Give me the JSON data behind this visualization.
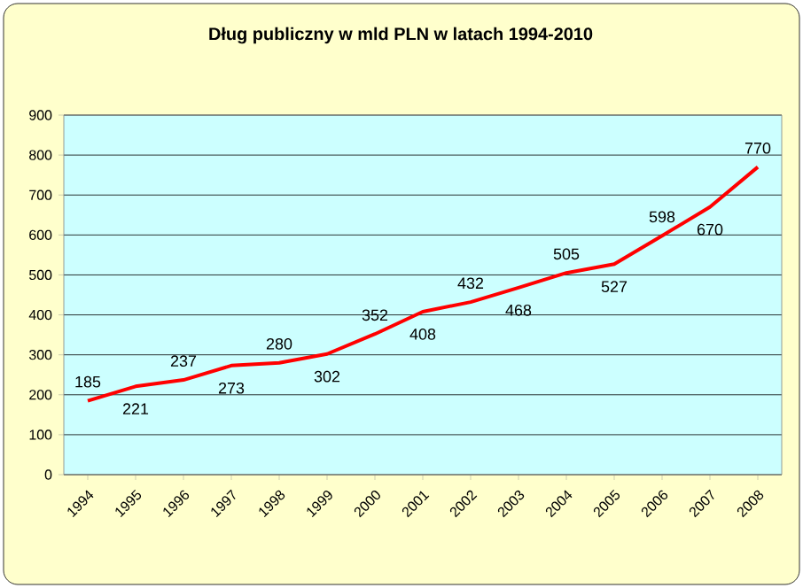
{
  "chart_data": {
    "type": "line",
    "title": "Dług publiczny w mld PLN w latach 1994-2010",
    "categories": [
      "1994",
      "1995",
      "1996",
      "1997",
      "1998",
      "1999",
      "2000",
      "2001",
      "2002",
      "2003",
      "2004",
      "2005",
      "2006",
      "2007",
      "2008"
    ],
    "values": [
      185,
      221,
      237,
      273,
      280,
      302,
      352,
      408,
      432,
      468,
      505,
      527,
      598,
      670,
      770
    ],
    "color": "#ff0000",
    "ylim": [
      0,
      900
    ],
    "yticks": [
      0,
      100,
      200,
      300,
      400,
      500,
      600,
      700,
      800,
      900
    ],
    "grid": "y",
    "data_labels": true,
    "marker": "none",
    "line_style": "solid"
  }
}
